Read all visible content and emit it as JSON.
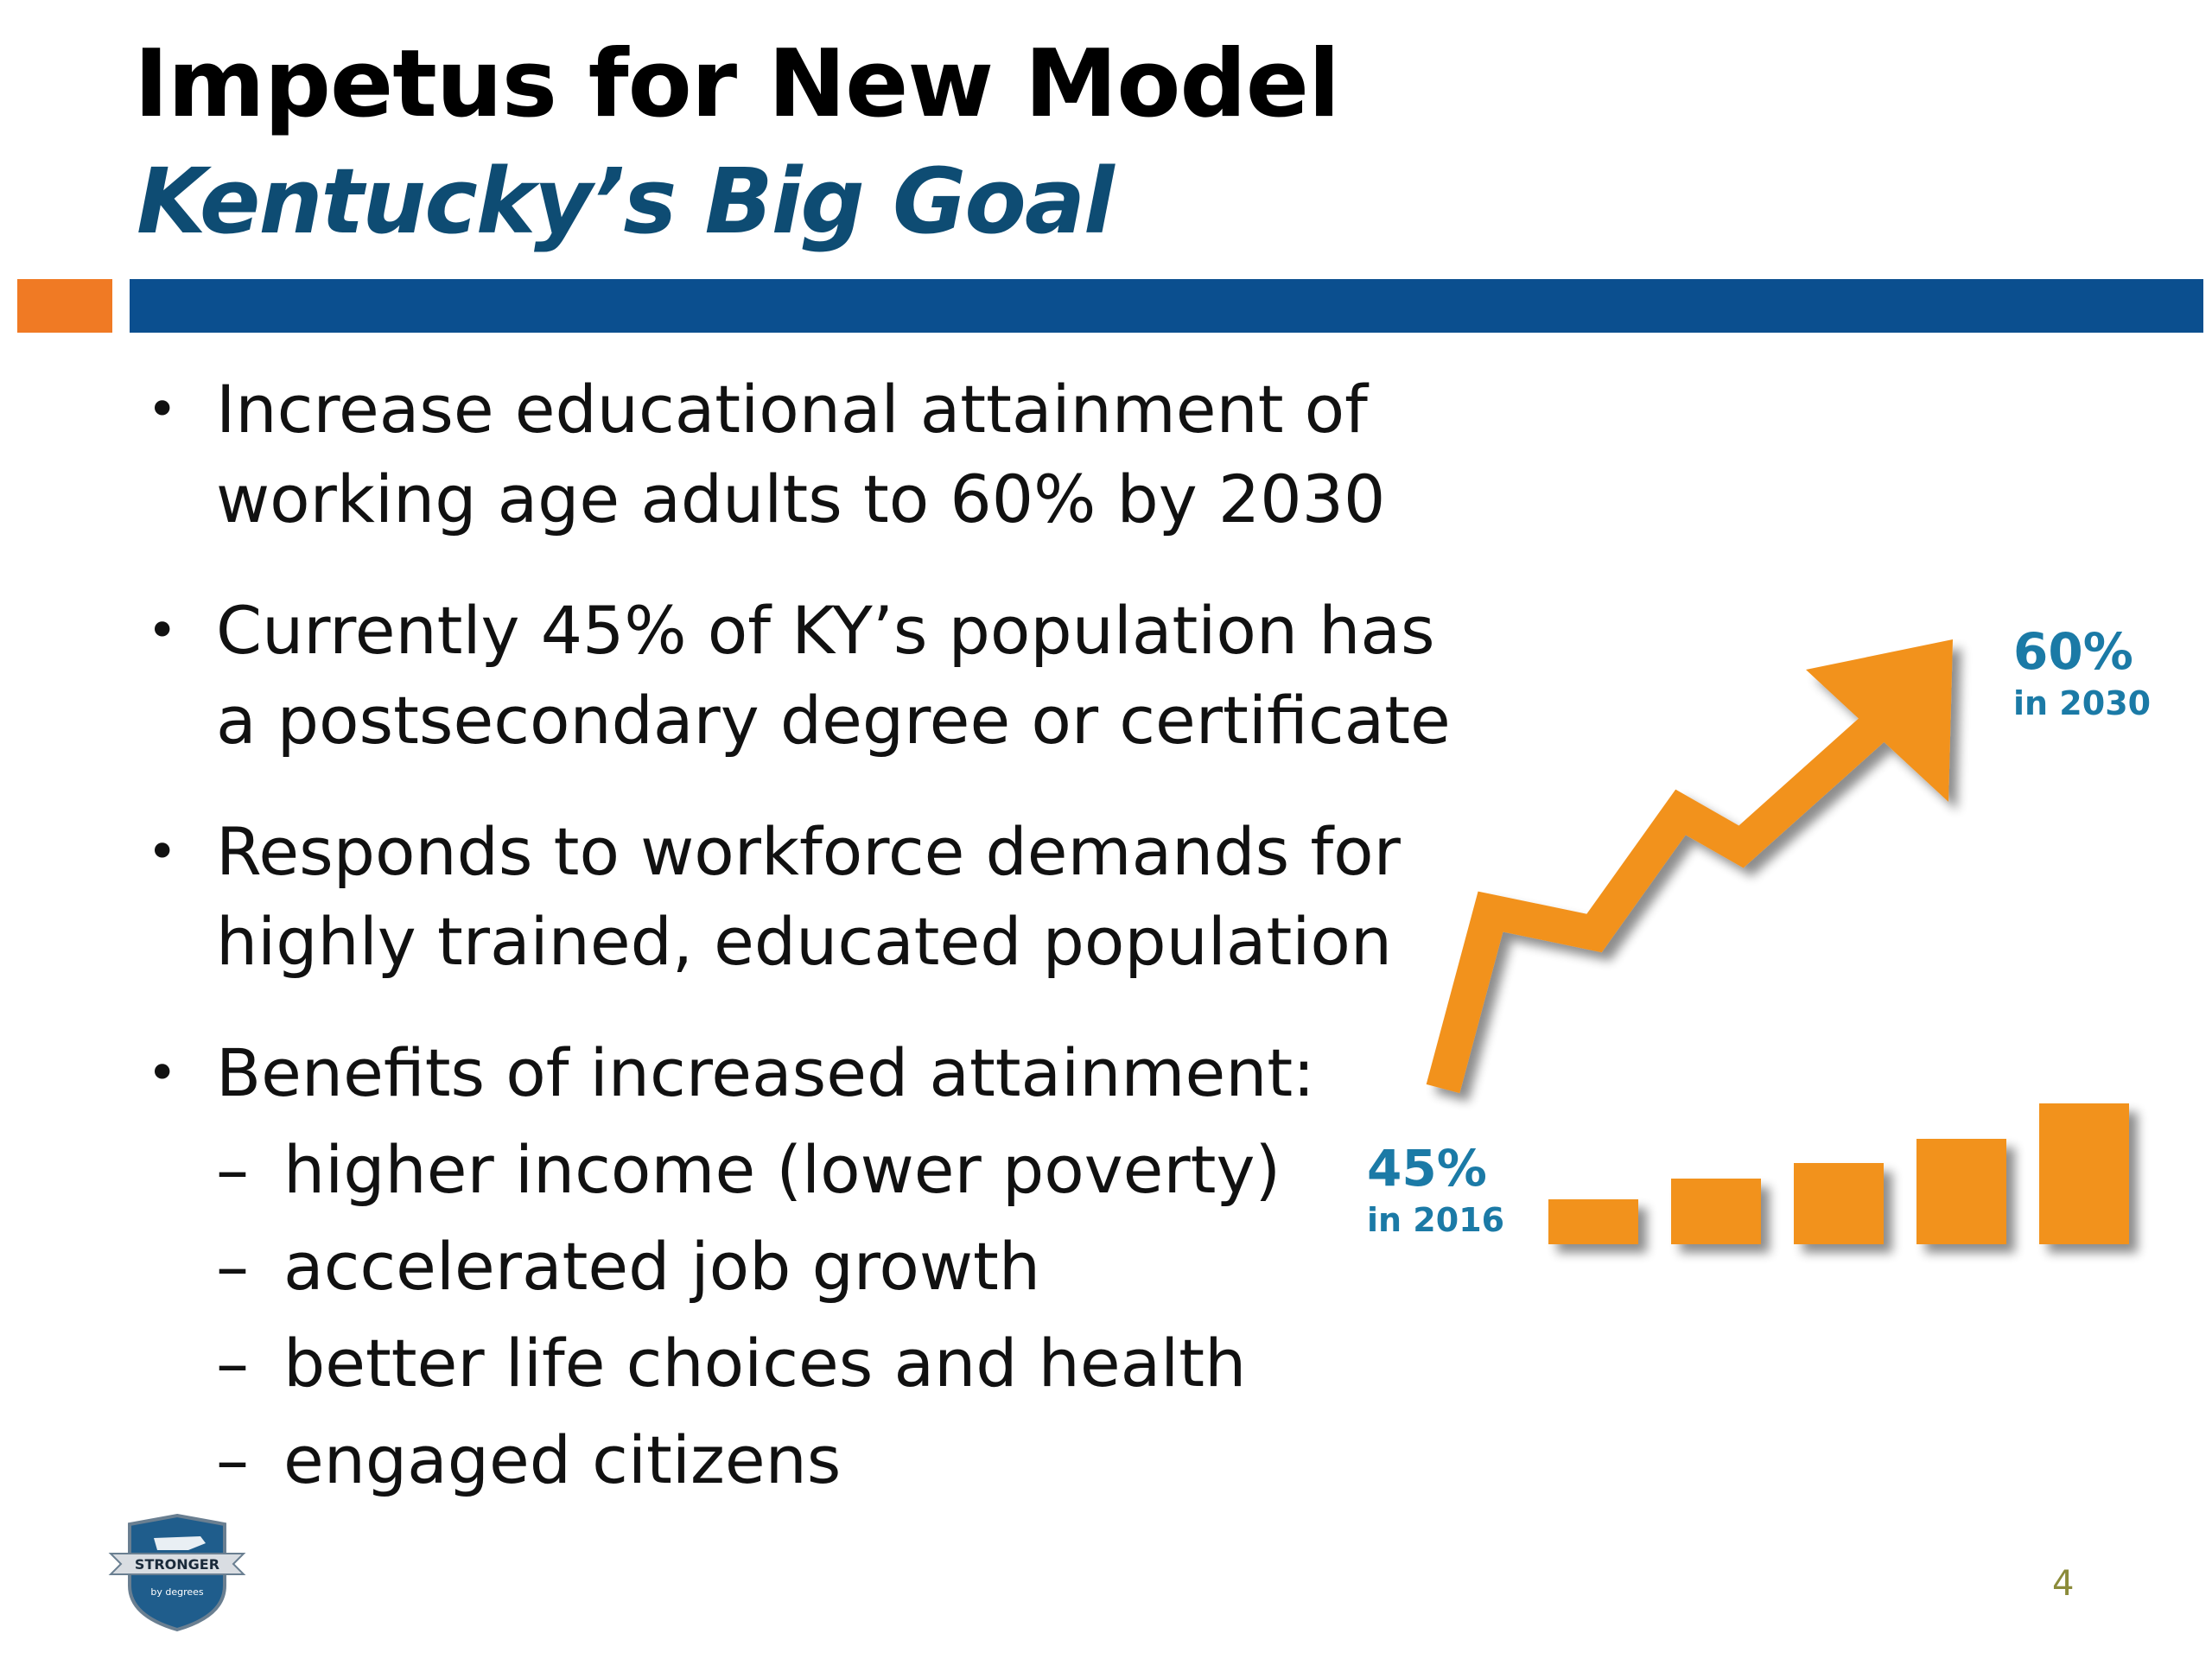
{
  "slide": {
    "title": "Impetus for New Model",
    "subtitle": "Kentucky’s Big Goal",
    "bullet_glyph": "•",
    "dash_glyph": "–",
    "bullets": [
      {
        "text": "Increase educational attainment of working age adults to 60% by 2030"
      },
      {
        "text": "Currently 45% of KY’s population has a postsecondary degree or certificate"
      },
      {
        "text": "Responds to workforce demands for highly trained, educated population"
      },
      {
        "text": "Benefits of increased attainment:"
      }
    ],
    "sub_bullets": [
      "higher income (lower poverty)",
      "accelerated job growth",
      "better life choices and health",
      "engaged citizens"
    ],
    "page_number": "4"
  },
  "graphic": {
    "start_label": {
      "value": "45%",
      "caption": "in 2016"
    },
    "end_label": {
      "value": "60%",
      "caption": "in 2030"
    },
    "bar_levels": [
      0.52,
      0.76,
      0.94,
      1.22,
      1.63
    ],
    "colors": {
      "bars": "#f2921f",
      "arrow": "#f2921f",
      "label": "#1b7aa6",
      "title_subtitle": "#0e4c73",
      "accent_square": "#f07a24",
      "rule_bar": "#0b4f8f"
    }
  },
  "logo": {
    "text": "STRONGER",
    "tagline": "by degrees",
    "icon": "kentucky-shield-logo"
  }
}
